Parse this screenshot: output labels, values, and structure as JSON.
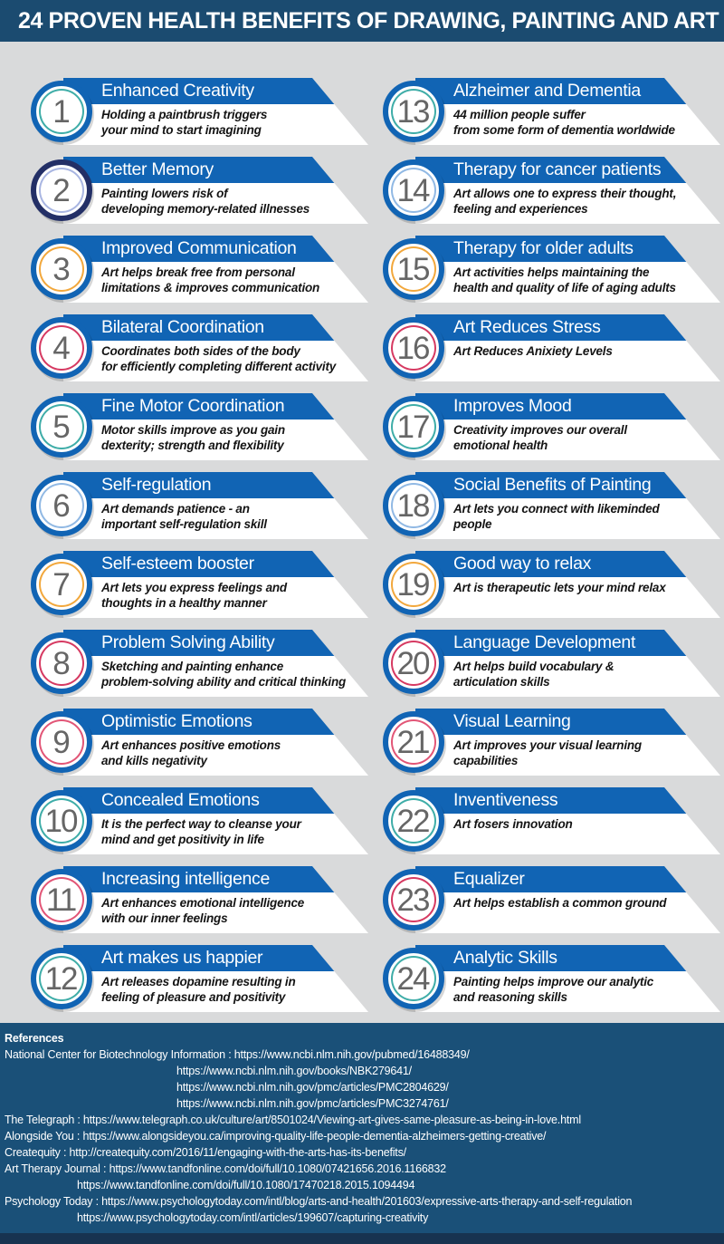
{
  "header": {
    "title": "24 PROVEN HEALTH BENEFITS OF DRAWING, PAINTING AND ART"
  },
  "colors": {
    "background": "#d9dadb",
    "header_bg": "#1b4b70",
    "banner_blue": "#1164B4",
    "references_bg": "#1a5078",
    "bottom_bar": "#173350",
    "number_gray": "#666666",
    "shadow_gray": "#c0c0c0"
  },
  "items": [
    {
      "number": "1",
      "title": "Enhanced Creativity",
      "desc": [
        "Holding a paintbrush triggers",
        "your mind to start imagining"
      ],
      "ring": "#3FADA8",
      "outer": "#1164B4"
    },
    {
      "number": "2",
      "title": "Better Memory",
      "desc": [
        "Painting lowers risk of",
        "developing memory-related illnesses"
      ],
      "ring": "#A9B6E2",
      "outer": "#232F66"
    },
    {
      "number": "3",
      "title": "Improved Communication",
      "desc": [
        "Art helps break free from personal",
        "limitations & improves communication"
      ],
      "ring": "#F2A83D",
      "outer": "#1164B4"
    },
    {
      "number": "4",
      "title": "Bilateral Coordination",
      "desc": [
        "Coordinates both sides of the body",
        "for efficiently completing different activity"
      ],
      "ring": "#D63A62",
      "outer": "#1164B4"
    },
    {
      "number": "5",
      "title": "Fine Motor Coordination",
      "desc": [
        "Motor skills improve as you gain",
        "dexterity; strength and flexibility"
      ],
      "ring": "#3FADA8",
      "outer": "#1164B4"
    },
    {
      "number": "6",
      "title": "Self-regulation",
      "desc": [
        "Art demands patience - an",
        "important self-regulation skill"
      ],
      "ring": "#91B9E4",
      "outer": "#1164B4"
    },
    {
      "number": "7",
      "title": "Self-esteem booster",
      "desc": [
        "Art lets you express feelings and",
        "thoughts in a healthy manner"
      ],
      "ring": "#F2A83D",
      "outer": "#1164B4"
    },
    {
      "number": "8",
      "title": "Problem Solving Ability",
      "desc": [
        "Sketching and painting enhance",
        "problem-solving ability and critical thinking"
      ],
      "ring": "#D63A62",
      "outer": "#1164B4"
    },
    {
      "number": "9",
      "title": "Optimistic Emotions",
      "desc": [
        "Art enhances positive emotions",
        "and kills negativity"
      ],
      "ring": "#E25677",
      "outer": "#1164B4"
    },
    {
      "number": "10",
      "title": "Concealed Emotions",
      "desc": [
        "It is the perfect way to cleanse your",
        "mind and get positivity in life"
      ],
      "ring": "#3FADA8",
      "outer": "#1164B4"
    },
    {
      "number": "11",
      "title": "Increasing intelligence",
      "desc": [
        "Art enhances emotional intelligence",
        "with our inner feelings"
      ],
      "ring": "#E25677",
      "outer": "#1164B4"
    },
    {
      "number": "12",
      "title": "Art makes us happier",
      "desc": [
        "Art releases dopamine resulting in",
        "feeling of pleasure and positivity"
      ],
      "ring": "#3FADA8",
      "outer": "#1164B4"
    },
    {
      "number": "13",
      "title": "Alzheimer and Dementia",
      "desc": [
        "44 million people suffer",
        "from some form of dementia worldwide"
      ],
      "ring": "#3FADA8",
      "outer": "#1164B4"
    },
    {
      "number": "14",
      "title": "Therapy for cancer patients",
      "desc": [
        "Art allows one to express their thought,",
        "feeling and experiences"
      ],
      "ring": "#91B9E4",
      "outer": "#1164B4"
    },
    {
      "number": "15",
      "title": "Therapy for older adults",
      "desc": [
        "Art activities helps maintaining the",
        "health and quality of life of aging adults"
      ],
      "ring": "#F2A83D",
      "outer": "#1164B4"
    },
    {
      "number": "16",
      "title": "Art Reduces Stress",
      "desc": [
        "Art Reduces Anixiety Levels"
      ],
      "ring": "#D63A62",
      "outer": "#1164B4"
    },
    {
      "number": "17",
      "title": "Improves Mood",
      "desc": [
        "Creativity improves our overall",
        "emotional health"
      ],
      "ring": "#3FADA8",
      "outer": "#1164B4"
    },
    {
      "number": "18",
      "title": "Social Benefits of Painting",
      "desc": [
        "Art lets you connect with likeminded",
        "people"
      ],
      "ring": "#91B9E4",
      "outer": "#1164B4"
    },
    {
      "number": "19",
      "title": "Good way to relax",
      "desc": [
        "Art is therapeutic lets your mind relax"
      ],
      "ring": "#F2A83D",
      "outer": "#1164B4"
    },
    {
      "number": "20",
      "title": "Language Development",
      "desc": [
        "Art helps build vocabulary &",
        "articulation skills"
      ],
      "ring": "#D63A62",
      "outer": "#1164B4"
    },
    {
      "number": "21",
      "title": "Visual Learning",
      "desc": [
        "Art improves your visual learning",
        "capabilities"
      ],
      "ring": "#E25677",
      "outer": "#1164B4"
    },
    {
      "number": "22",
      "title": "Inventiveness",
      "desc": [
        "Art fosers innovation"
      ],
      "ring": "#3FADA8",
      "outer": "#1164B4"
    },
    {
      "number": "23",
      "title": "Equalizer",
      "desc": [
        "Art helps establish a common ground"
      ],
      "ring": "#D63A62",
      "outer": "#1164B4"
    },
    {
      "number": "24",
      "title": "Analytic Skills",
      "desc": [
        "Painting helps improve our analytic",
        "and reasoning skills"
      ],
      "ring": "#3FADA8",
      "outer": "#1164B4"
    }
  ],
  "references": {
    "heading": "References",
    "lines": [
      {
        "prefix": "National Center for Biotechnology Information : ",
        "url": "https://www.ncbi.nlm.nih.gov/pubmed/16488349/",
        "indent": 0
      },
      {
        "prefix": "",
        "url": "https://www.ncbi.nlm.nih.gov/books/NBK279641/",
        "indent": 1
      },
      {
        "prefix": "",
        "url": "https://www.ncbi.nlm.nih.gov/pmc/articles/PMC2804629/",
        "indent": 1
      },
      {
        "prefix": "",
        "url": "https://www.ncbi.nlm.nih.gov/pmc/articles/PMC3274761/",
        "indent": 1
      },
      {
        "prefix": "The Telegraph : ",
        "url": "https://www.telegraph.co.uk/culture/art/8501024/Viewing-art-gives-same-pleasure-as-being-in-love.html",
        "indent": 0
      },
      {
        "prefix": "Alongside You : ",
        "url": "https://www.alongsideyou.ca/improving-quality-life-people-dementia-alzheimers-getting-creative/",
        "indent": 0
      },
      {
        "prefix": "Createquity : ",
        "url": "http://createquity.com/2016/11/engaging-with-the-arts-has-its-benefits/",
        "indent": 0
      },
      {
        "prefix": "Art Therapy Journal : ",
        "url": "https://www.tandfonline.com/doi/full/10.1080/07421656.2016.1166832",
        "indent": 0
      },
      {
        "prefix": "",
        "url": "https://www.tandfonline.com/doi/full/10.1080/17470218.2015.1094494",
        "indent": 2
      },
      {
        "prefix": "Psychology Today : ",
        "url": "https://www.psychologytoday.com/intl/blog/arts-and-health/201603/expressive-arts-therapy-and-self-regulation",
        "indent": 0
      },
      {
        "prefix": "",
        "url": "https://www.psychologytoday.com/intl/articles/199607/capturing-creativity",
        "indent": 2
      }
    ]
  }
}
